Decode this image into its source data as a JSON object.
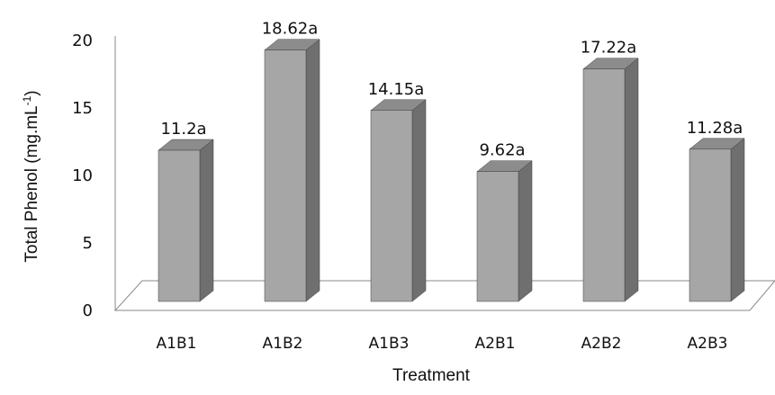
{
  "chart_data": {
    "type": "bar",
    "style": "3d",
    "categories": [
      "A1B1",
      "A1B2",
      "A1B3",
      "A2B1",
      "A2B2",
      "A2B3"
    ],
    "values": [
      11.2,
      18.62,
      14.15,
      9.62,
      17.22,
      11.28
    ],
    "data_labels": [
      "11.2a",
      "18.62a",
      "14.15a",
      "9.62a",
      "17.22a",
      "11.28a"
    ],
    "xlabel": "Treatment",
    "ylabel": {
      "main": "Total Phenol (mg.mL",
      "superscript": "-1",
      "close": ")"
    },
    "ylim": [
      0,
      20
    ],
    "yticks": [
      0,
      5,
      10,
      15,
      20
    ],
    "grid": false,
    "legend": "none",
    "colors": {
      "bar_front": "#a6a6a6",
      "bar_side": "#6f6f6f",
      "bar_top": "#8c8c8c",
      "outline": "#404040",
      "floor": "#ffffff",
      "floor_outline": "#8a8a8a"
    }
  }
}
